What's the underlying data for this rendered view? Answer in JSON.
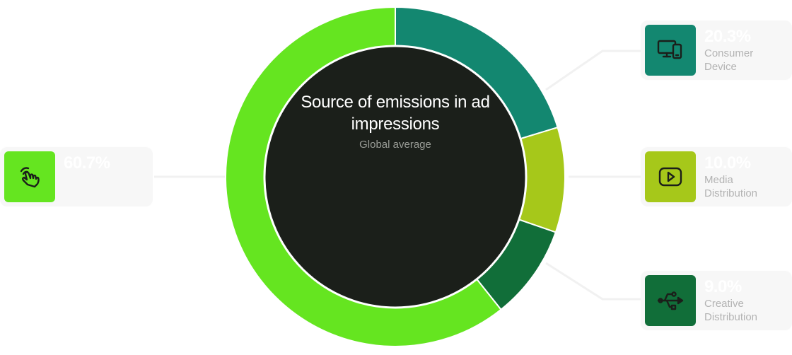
{
  "chart_data": {
    "type": "pie",
    "title": "Source of emissions in ad impressions",
    "subtitle": "Global average",
    "slices": [
      {
        "label": "Consumer Device",
        "value": 20.3,
        "display": "20.3%",
        "color": "#138770",
        "icon": "devices-icon"
      },
      {
        "label": "Media Distribution",
        "value": 10.0,
        "display": "10.0%",
        "color": "#a6c81a",
        "icon": "play-icon"
      },
      {
        "label": "Creative Distribution",
        "value": 9.0,
        "display": "9.0%",
        "color": "#116e39",
        "icon": "usb-icon"
      },
      {
        "label": "",
        "value": 60.7,
        "display": "60.7%",
        "color": "#65e520",
        "icon": "tap-icon"
      }
    ]
  },
  "colors": {
    "center": "#1b1f1a",
    "background": "#ffffff",
    "card": "#f7f7f7",
    "connector": "#f1f1f1"
  }
}
